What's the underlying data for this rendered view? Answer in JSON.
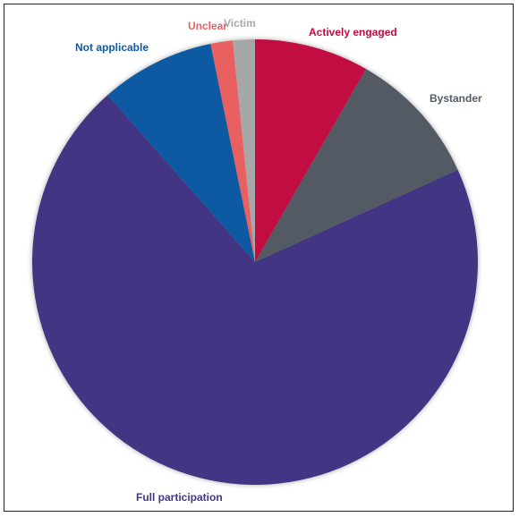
{
  "chart_data": {
    "type": "pie",
    "title": "",
    "legend": "none",
    "slices": [
      {
        "label": "Actively engaged",
        "value": 8.3,
        "color": "#c20a42",
        "label_color": "#c20a42"
      },
      {
        "label": "Bystander",
        "value": 9.9,
        "color": "#525a64",
        "label_color": "#525a64"
      },
      {
        "label": "Full participation",
        "value": 70.3,
        "color": "#433683",
        "label_color": "#433683"
      },
      {
        "label": "Not applicable",
        "value": 8.3,
        "color": "#0b5aa3",
        "label_color": "#0b5aa3"
      },
      {
        "label": "Unclear",
        "value": 1.6,
        "color": "#e86161",
        "label_color": "#e86161"
      },
      {
        "label": "Victim",
        "value": 1.6,
        "color": "#a7a7aa",
        "label_color": "#a7a7aa"
      }
    ]
  }
}
